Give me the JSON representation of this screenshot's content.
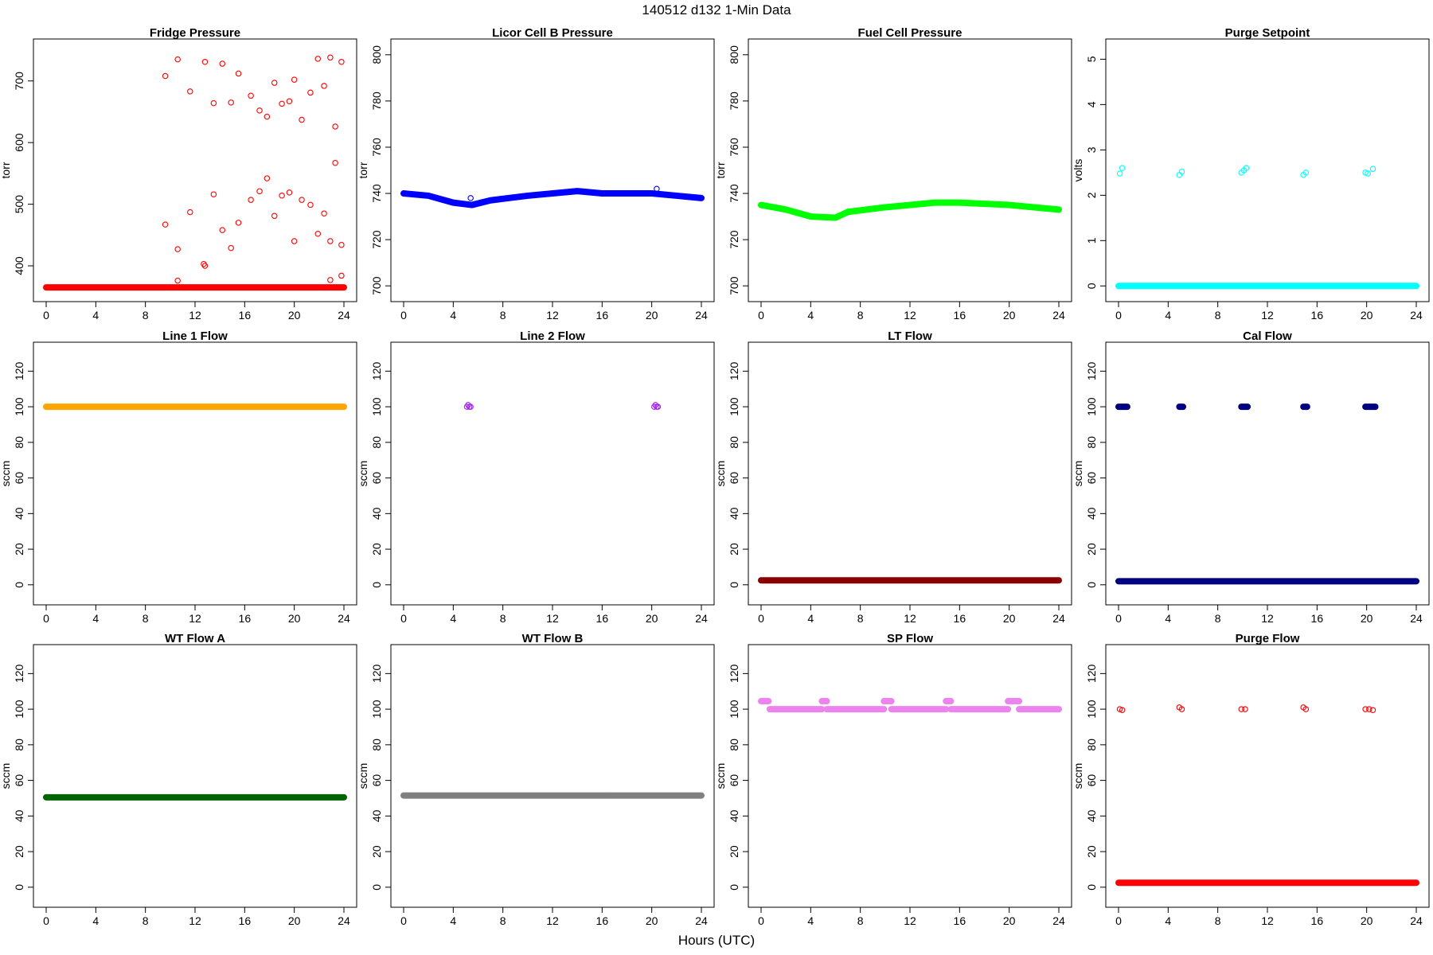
{
  "figure": {
    "title": "140512   d132   1-Min Data",
    "xlabel": "Hours (UTC)"
  },
  "chart_data": [
    {
      "type": "scatter",
      "title": "Fridge Pressure",
      "ylabel": "torr",
      "color": "#ff0000",
      "xlim": [
        0,
        24
      ],
      "ylim": [
        360,
        750
      ],
      "xticks": [
        0,
        4,
        8,
        12,
        16,
        20,
        24
      ],
      "yticks": [
        400,
        500,
        600,
        700
      ],
      "grid": false,
      "marker": "open-circle",
      "series": [
        {
          "x_from": 0,
          "x_to": 24,
          "y": [
            365
          ],
          "dense": true
        },
        {
          "points": [
            [
              9.6,
              708
            ],
            [
              10.6,
              735
            ],
            [
              11.6,
              683
            ],
            [
              12.8,
              731
            ],
            [
              13.5,
              664
            ],
            [
              14.2,
              728
            ],
            [
              14.9,
              665
            ],
            [
              15.5,
              712
            ],
            [
              16.5,
              676
            ],
            [
              17.2,
              652
            ],
            [
              17.8,
              642
            ],
            [
              18.4,
              697
            ],
            [
              19.0,
              663
            ],
            [
              19.6,
              667
            ],
            [
              20.0,
              702
            ],
            [
              20.6,
              637
            ],
            [
              21.3,
              681
            ],
            [
              21.9,
              736
            ],
            [
              22.4,
              692
            ],
            [
              22.9,
              738
            ],
            [
              23.3,
              626
            ],
            [
              23.8,
              731
            ],
            [
              9.6,
              467
            ],
            [
              10.6,
              427
            ],
            [
              11.6,
              487
            ],
            [
              12.7,
              403
            ],
            [
              12.8,
              400
            ],
            [
              13.5,
              516
            ],
            [
              14.2,
              458
            ],
            [
              14.9,
              429
            ],
            [
              15.5,
              470
            ],
            [
              16.5,
              507
            ],
            [
              17.2,
              521
            ],
            [
              17.8,
              542
            ],
            [
              18.4,
              481
            ],
            [
              19.0,
              514
            ],
            [
              19.6,
              519
            ],
            [
              20.0,
              440
            ],
            [
              20.6,
              507
            ],
            [
              21.3,
              499
            ],
            [
              21.9,
              452
            ],
            [
              22.4,
              485
            ],
            [
              22.9,
              440
            ],
            [
              23.3,
              567
            ],
            [
              23.8,
              434
            ],
            [
              10.6,
              376
            ],
            [
              22.9,
              377
            ],
            [
              23.8,
              384
            ]
          ]
        }
      ]
    },
    {
      "type": "scatter",
      "title": "Licor Cell B Pressure",
      "ylabel": "torr",
      "color": "#0000ff",
      "xlim": [
        0,
        24
      ],
      "ylim": [
        698,
        802
      ],
      "xticks": [
        0,
        4,
        8,
        12,
        16,
        20,
        24
      ],
      "yticks": [
        700,
        720,
        740,
        760,
        780,
        800
      ],
      "grid": false,
      "marker": "open-circle",
      "series": [
        {
          "line": [
            [
              0,
              740
            ],
            [
              2,
              739
            ],
            [
              4,
              736
            ],
            [
              5.5,
              735
            ],
            [
              7,
              737
            ],
            [
              10,
              739
            ],
            [
              14,
              741
            ],
            [
              16,
              740
            ],
            [
              20,
              740
            ],
            [
              22,
              739
            ],
            [
              24,
              738
            ]
          ],
          "dense": true
        },
        {
          "points": [
            [
              5.4,
              738
            ],
            [
              20.4,
              742
            ]
          ]
        }
      ]
    },
    {
      "type": "scatter",
      "title": "Fuel Cell Pressure",
      "ylabel": "torr",
      "color": "#00ff00",
      "xlim": [
        0,
        24
      ],
      "ylim": [
        698,
        802
      ],
      "xticks": [
        0,
        4,
        8,
        12,
        16,
        20,
        24
      ],
      "yticks": [
        700,
        720,
        740,
        760,
        780,
        800
      ],
      "grid": false,
      "marker": "open-circle",
      "series": [
        {
          "line": [
            [
              0,
              735
            ],
            [
              2,
              733
            ],
            [
              4,
              730
            ],
            [
              6,
              729.5
            ],
            [
              7,
              732
            ],
            [
              10,
              734
            ],
            [
              14,
              736
            ],
            [
              16,
              736
            ],
            [
              20,
              735
            ],
            [
              22,
              734
            ],
            [
              24,
              733
            ]
          ],
          "dense": true
        }
      ]
    },
    {
      "type": "scatter",
      "title": "Purge Setpoint",
      "ylabel": "volts",
      "color": "#00ffff",
      "xlim": [
        0,
        24
      ],
      "ylim": [
        -0.1,
        5.2
      ],
      "xticks": [
        0,
        4,
        8,
        12,
        16,
        20,
        24
      ],
      "yticks": [
        0,
        1,
        2,
        3,
        4,
        5
      ],
      "grid": false,
      "marker": "open-circle",
      "series": [
        {
          "x_from": 0,
          "x_to": 24,
          "y": [
            0
          ],
          "dense": true
        },
        {
          "points": [
            [
              0.1,
              2.48
            ],
            [
              0.3,
              2.6
            ],
            [
              4.9,
              2.45
            ],
            [
              5.1,
              2.52
            ],
            [
              9.9,
              2.5
            ],
            [
              10.1,
              2.55
            ],
            [
              10.3,
              2.6
            ],
            [
              14.9,
              2.45
            ],
            [
              15.1,
              2.5
            ],
            [
              19.9,
              2.5
            ],
            [
              20.1,
              2.48
            ],
            [
              20.5,
              2.58
            ]
          ]
        }
      ]
    },
    {
      "type": "scatter",
      "title": "Line 1 Flow",
      "ylabel": "sccm",
      "color": "#ffa500",
      "xlim": [
        0,
        24
      ],
      "ylim": [
        -5,
        130
      ],
      "xticks": [
        0,
        4,
        8,
        12,
        16,
        20,
        24
      ],
      "yticks": [
        0,
        20,
        40,
        60,
        80,
        100,
        120
      ],
      "grid": false,
      "marker": "open-circle",
      "series": [
        {
          "x_from": 0,
          "x_to": 24,
          "y": [
            100
          ],
          "dense": true
        }
      ]
    },
    {
      "type": "scatter",
      "title": "Line 2 Flow",
      "ylabel": "sccm",
      "color": "#a020f0",
      "xlim": [
        0,
        24
      ],
      "ylim": [
        -5,
        130
      ],
      "xticks": [
        0,
        4,
        8,
        12,
        16,
        20,
        24
      ],
      "yticks": [
        0,
        20,
        40,
        60,
        80,
        100,
        120
      ],
      "grid": false,
      "marker": "open-circle",
      "series": [
        {
          "points": [
            [
              5.1,
              100
            ],
            [
              5.2,
              101
            ],
            [
              5.3,
              100
            ],
            [
              5.4,
              100
            ],
            [
              20.2,
              100
            ],
            [
              20.3,
              101
            ],
            [
              20.4,
              100
            ],
            [
              20.5,
              100
            ]
          ]
        }
      ]
    },
    {
      "type": "scatter",
      "title": "LT Flow",
      "ylabel": "sccm",
      "color": "#8b0000",
      "xlim": [
        0,
        24
      ],
      "ylim": [
        -5,
        130
      ],
      "xticks": [
        0,
        4,
        8,
        12,
        16,
        20,
        24
      ],
      "yticks": [
        0,
        20,
        40,
        60,
        80,
        100,
        120
      ],
      "grid": false,
      "marker": "open-circle",
      "series": [
        {
          "x_from": 0,
          "x_to": 24,
          "y": [
            2.5
          ],
          "dense": true
        }
      ]
    },
    {
      "type": "scatter",
      "title": "Cal Flow",
      "ylabel": "sccm",
      "color": "#000080",
      "xlim": [
        0,
        24
      ],
      "ylim": [
        -5,
        130
      ],
      "xticks": [
        0,
        4,
        8,
        12,
        16,
        20,
        24
      ],
      "yticks": [
        0,
        20,
        40,
        60,
        80,
        100,
        120
      ],
      "grid": false,
      "marker": "open-circle",
      "series": [
        {
          "x_from": 0,
          "x_to": 24,
          "y": [
            2
          ],
          "dense": true
        },
        {
          "segments": [
            [
              0,
              0.7,
              100
            ],
            [
              4.9,
              5.2,
              100
            ],
            [
              9.9,
              10.4,
              100
            ],
            [
              14.9,
              15.2,
              100
            ],
            [
              19.9,
              20.7,
              100
            ]
          ],
          "dense": true
        }
      ]
    },
    {
      "type": "scatter",
      "title": "WT Flow A",
      "ylabel": "sccm",
      "color": "#006400",
      "xlim": [
        0,
        24
      ],
      "ylim": [
        -5,
        130
      ],
      "xticks": [
        0,
        4,
        8,
        12,
        16,
        20,
        24
      ],
      "yticks": [
        0,
        20,
        40,
        60,
        80,
        100,
        120
      ],
      "grid": false,
      "marker": "open-circle",
      "series": [
        {
          "x_from": 0,
          "x_to": 24,
          "y": [
            50.5
          ],
          "dense": true
        }
      ]
    },
    {
      "type": "scatter",
      "title": "WT Flow B",
      "ylabel": "sccm",
      "color": "#808080",
      "xlim": [
        0,
        24
      ],
      "ylim": [
        -5,
        130
      ],
      "xticks": [
        0,
        4,
        8,
        12,
        16,
        20,
        24
      ],
      "yticks": [
        0,
        20,
        40,
        60,
        80,
        100,
        120
      ],
      "grid": false,
      "marker": "open-circle",
      "series": [
        {
          "x_from": 0,
          "x_to": 24,
          "y": [
            51.5
          ],
          "dense": true
        }
      ]
    },
    {
      "type": "scatter",
      "title": "SP Flow",
      "ylabel": "sccm",
      "color": "#ee82ee",
      "xlim": [
        0,
        24
      ],
      "ylim": [
        -5,
        130
      ],
      "xticks": [
        0,
        4,
        8,
        12,
        16,
        20,
        24
      ],
      "yticks": [
        0,
        20,
        40,
        60,
        80,
        100,
        120
      ],
      "grid": false,
      "marker": "open-circle",
      "series": [
        {
          "segments": [
            [
              0.7,
              4.9,
              100
            ],
            [
              5.3,
              9.9,
              100
            ],
            [
              10.5,
              14.9,
              100
            ],
            [
              15.3,
              19.9,
              100
            ],
            [
              20.8,
              24,
              100
            ]
          ],
          "dense": true
        },
        {
          "segments": [
            [
              0,
              0.6,
              104.5
            ],
            [
              4.9,
              5.3,
              104.5
            ],
            [
              9.9,
              10.5,
              104.5
            ],
            [
              14.9,
              15.3,
              104.5
            ],
            [
              19.9,
              20.8,
              104.5
            ]
          ],
          "dense": true
        }
      ]
    },
    {
      "type": "scatter",
      "title": "Purge Flow",
      "ylabel": "sccm",
      "color": "#ff0000",
      "xlim": [
        0,
        24
      ],
      "ylim": [
        -5,
        130
      ],
      "xticks": [
        0,
        4,
        8,
        12,
        16,
        20,
        24
      ],
      "yticks": [
        0,
        20,
        40,
        60,
        80,
        100,
        120
      ],
      "grid": false,
      "marker": "open-circle",
      "series": [
        {
          "x_from": 0,
          "x_to": 24,
          "y": [
            2.5
          ],
          "dense": true
        },
        {
          "points": [
            [
              0.1,
              100
            ],
            [
              0.3,
              99.5
            ],
            [
              4.9,
              101
            ],
            [
              5.1,
              100
            ],
            [
              9.9,
              100
            ],
            [
              10.2,
              100
            ],
            [
              14.9,
              101
            ],
            [
              15.1,
              100
            ],
            [
              19.9,
              100
            ],
            [
              20.2,
              100
            ],
            [
              20.5,
              99.5
            ]
          ]
        }
      ]
    }
  ]
}
